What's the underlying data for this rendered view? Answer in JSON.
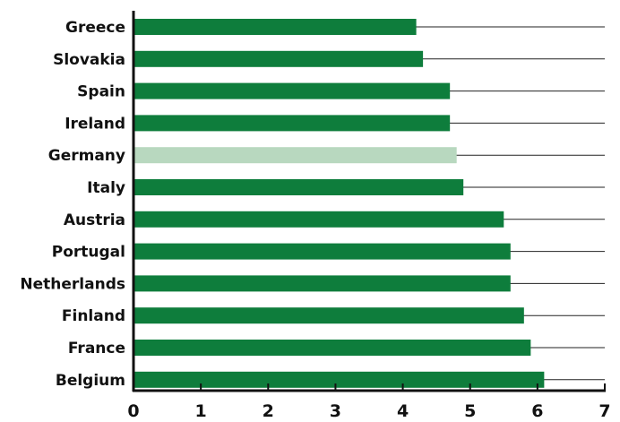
{
  "chart_data": {
    "type": "bar",
    "orientation": "horizontal",
    "title": "",
    "xlabel": "",
    "ylabel": "",
    "categories": [
      "Greece",
      "Slovakia",
      "Spain",
      "Ireland",
      "Germany",
      "Italy",
      "Austria",
      "Portugal",
      "Netherlands",
      "Finland",
      "France",
      "Belgium"
    ],
    "values": [
      4.2,
      4.3,
      4.7,
      4.7,
      4.8,
      4.9,
      5.5,
      5.6,
      5.6,
      5.8,
      5.9,
      6.1
    ],
    "highlight": "Germany",
    "xlim": [
      0,
      7
    ],
    "xticks": [
      "0",
      "1",
      "2",
      "3",
      "4",
      "5",
      "6",
      "7"
    ],
    "grid": "horizontal lines per category",
    "colors": {
      "bar": "#0e7d3c",
      "highlight_bar": "#b8d8bf",
      "axis": "#111111",
      "gridline": "#222222"
    }
  }
}
